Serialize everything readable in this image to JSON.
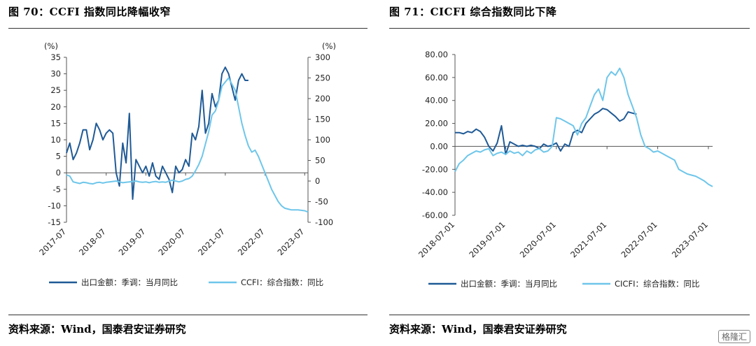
{
  "panels": [
    {
      "title": "图 70：CCFI 指数同比降幅收窄",
      "source": "资料来源：Wind，国泰君安证券研究"
    },
    {
      "title": "图 71：CICFI 综合指数同比下降",
      "source": "资料来源：Wind，国泰君安证券研究"
    }
  ],
  "watermark": "格隆汇",
  "chart_data": [
    {
      "type": "line",
      "title": "",
      "left_unit": "(%)",
      "right_unit": "(%)",
      "x_ticks": [
        "2017-07",
        "2018-07",
        "2019-07",
        "2020-07",
        "2021-07",
        "2022-07",
        "2023-07"
      ],
      "x_range": [
        "2017-07",
        "2023-08"
      ],
      "ylim_left": [
        -15,
        35
      ],
      "yticks_left": [
        -15,
        -10,
        -5,
        0,
        5,
        10,
        15,
        20,
        25,
        30,
        35
      ],
      "ylim_right": [
        -100,
        300
      ],
      "yticks_right": [
        -100,
        -50,
        0,
        50,
        100,
        150,
        200,
        250,
        300
      ],
      "legend_position": "bottom",
      "series": [
        {
          "name": "出口金额：季调：当月同比",
          "axis": "left",
          "color": "#1f5a96",
          "x": [
            "2017-07",
            "2017-08",
            "2017-09",
            "2017-10",
            "2017-11",
            "2017-12",
            "2018-01",
            "2018-02",
            "2018-03",
            "2018-04",
            "2018-05",
            "2018-06",
            "2018-07",
            "2018-08",
            "2018-09",
            "2018-10",
            "2018-11",
            "2018-12",
            "2019-01",
            "2019-02",
            "2019-03",
            "2019-04",
            "2019-05",
            "2019-06",
            "2019-07",
            "2019-08",
            "2019-09",
            "2019-10",
            "2019-11",
            "2019-12",
            "2020-01",
            "2020-02",
            "2020-03",
            "2020-04",
            "2020-05",
            "2020-06",
            "2020-07",
            "2020-08",
            "2020-09",
            "2020-10",
            "2020-11",
            "2020-12",
            "2021-01",
            "2021-02",
            "2021-03",
            "2021-04",
            "2021-05",
            "2021-06",
            "2021-07",
            "2021-08",
            "2021-09",
            "2021-10",
            "2021-11",
            "2021-12",
            "2022-01",
            "2022-02"
          ],
          "y": [
            6,
            9,
            4,
            6,
            9,
            13,
            13,
            7,
            10,
            15,
            13,
            10,
            12,
            13,
            12,
            0,
            -4,
            9,
            3,
            18,
            -8,
            4,
            2,
            0,
            2,
            -1,
            3,
            -1,
            -2,
            2,
            0,
            -2,
            -6,
            2,
            0,
            1,
            4,
            2,
            12,
            10,
            14,
            25,
            12,
            15,
            24,
            20,
            22,
            30,
            32,
            30,
            26,
            22,
            28,
            30,
            28,
            28
          ]
        },
        {
          "name": "CCFI：综合指数：同比",
          "axis": "right",
          "color": "#6ec6ea",
          "x": [
            "2017-07",
            "2017-08",
            "2017-09",
            "2017-10",
            "2017-11",
            "2017-12",
            "2018-01",
            "2018-02",
            "2018-03",
            "2018-04",
            "2018-05",
            "2018-06",
            "2018-07",
            "2018-08",
            "2018-09",
            "2018-10",
            "2018-11",
            "2018-12",
            "2019-01",
            "2019-02",
            "2019-03",
            "2019-04",
            "2019-05",
            "2019-06",
            "2019-07",
            "2019-08",
            "2019-09",
            "2019-10",
            "2019-11",
            "2019-12",
            "2020-01",
            "2020-02",
            "2020-03",
            "2020-04",
            "2020-05",
            "2020-06",
            "2020-07",
            "2020-08",
            "2020-09",
            "2020-10",
            "2020-11",
            "2020-12",
            "2021-01",
            "2021-02",
            "2021-03",
            "2021-04",
            "2021-05",
            "2021-06",
            "2021-07",
            "2021-08",
            "2021-09",
            "2021-10",
            "2021-11",
            "2021-12",
            "2022-01",
            "2022-02",
            "2022-03",
            "2022-04",
            "2022-05",
            "2022-06",
            "2022-07",
            "2022-08",
            "2022-09",
            "2022-10",
            "2022-11",
            "2022-12",
            "2023-01",
            "2023-02",
            "2023-03",
            "2023-04",
            "2023-05",
            "2023-06",
            "2023-07",
            "2023-08"
          ],
          "y": [
            15,
            12,
            -2,
            -4,
            -6,
            -3,
            -4,
            -6,
            -7,
            -4,
            -3,
            -5,
            -3,
            -2,
            -1,
            0,
            -2,
            -4,
            -3,
            -2,
            -1,
            0,
            -2,
            -3,
            -2,
            -4,
            -2,
            -1,
            -3,
            -2,
            -3,
            0,
            2,
            0,
            -2,
            0,
            4,
            6,
            12,
            25,
            40,
            60,
            90,
            120,
            160,
            170,
            195,
            230,
            240,
            250,
            235,
            220,
            180,
            140,
            110,
            85,
            70,
            75,
            60,
            40,
            20,
            0,
            -20,
            -35,
            -50,
            -60,
            -66,
            -68,
            -70,
            -70,
            -70,
            -71,
            -72,
            -75
          ]
        }
      ]
    },
    {
      "type": "line",
      "title": "",
      "x_ticks": [
        "2018-07-01",
        "2019-07-01",
        "2020-07-01",
        "2021-07-01",
        "2022-07-01",
        "2023-07-01"
      ],
      "x_range": [
        "2018-07-01",
        "2023-08-01"
      ],
      "ylim": [
        -60,
        80
      ],
      "yticks": [
        "-60.00",
        "-40.00",
        "-20.00",
        "0.00",
        "20.00",
        "40.00",
        "60.00",
        "80.00"
      ],
      "legend_position": "bottom",
      "series": [
        {
          "name": "出口金额：季调：当月同比",
          "color": "#1f5a96",
          "x": [
            "2018-07",
            "2018-08",
            "2018-09",
            "2018-10",
            "2018-11",
            "2018-12",
            "2019-01",
            "2019-02",
            "2019-03",
            "2019-04",
            "2019-05",
            "2019-06",
            "2019-07",
            "2019-08",
            "2019-09",
            "2019-10",
            "2019-11",
            "2019-12",
            "2020-01",
            "2020-02",
            "2020-03",
            "2020-04",
            "2020-05",
            "2020-06",
            "2020-07",
            "2020-08",
            "2020-09",
            "2020-10",
            "2020-11",
            "2020-12",
            "2021-01",
            "2021-02",
            "2021-03",
            "2021-04",
            "2021-05",
            "2021-06",
            "2021-07",
            "2021-08",
            "2021-09",
            "2021-10",
            "2021-11",
            "2021-12",
            "2022-01",
            "2022-02"
          ],
          "y": [
            12,
            12,
            11,
            13,
            12,
            15,
            13,
            8,
            0,
            -4,
            3,
            18,
            -7,
            4,
            2,
            0,
            1,
            0,
            1,
            0,
            -2,
            2,
            0,
            1,
            3,
            -4,
            2,
            0,
            12,
            14,
            12,
            20,
            24,
            28,
            30,
            33,
            32,
            29,
            26,
            22,
            24,
            30,
            29,
            28
          ]
        },
        {
          "name": "CICFI：综合指数：同比",
          "color": "#6ec6ea",
          "x": [
            "2018-07",
            "2018-08",
            "2018-09",
            "2018-10",
            "2018-11",
            "2018-12",
            "2019-01",
            "2019-02",
            "2019-03",
            "2019-04",
            "2019-05",
            "2019-06",
            "2019-07",
            "2019-08",
            "2019-09",
            "2019-10",
            "2019-11",
            "2019-12",
            "2020-01",
            "2020-02",
            "2020-03",
            "2020-04",
            "2020-05",
            "2020-06",
            "2020-07",
            "2020-08",
            "2020-09",
            "2020-10",
            "2020-11",
            "2020-12",
            "2021-01",
            "2021-02",
            "2021-03",
            "2021-04",
            "2021-05",
            "2021-06",
            "2021-07",
            "2021-08",
            "2021-09",
            "2021-10",
            "2021-11",
            "2021-12",
            "2022-01",
            "2022-02",
            "2022-03",
            "2022-04",
            "2022-05",
            "2022-06",
            "2022-07",
            "2022-08",
            "2022-09",
            "2022-10",
            "2022-11",
            "2022-12",
            "2023-01",
            "2023-02",
            "2023-03",
            "2023-04",
            "2023-05",
            "2023-06",
            "2023-07",
            "2023-08"
          ],
          "y": [
            -22,
            -15,
            -12,
            -8,
            -6,
            -4,
            -5,
            -3,
            -2,
            -8,
            -6,
            -5,
            -7,
            -4,
            -6,
            -5,
            -8,
            -4,
            -6,
            -3,
            -2,
            -5,
            -4,
            0,
            25,
            24,
            22,
            20,
            18,
            10,
            20,
            25,
            35,
            45,
            50,
            40,
            60,
            65,
            62,
            68,
            60,
            45,
            35,
            25,
            10,
            0,
            -2,
            -5,
            -4,
            -6,
            -8,
            -10,
            -12,
            -20,
            -22,
            -24,
            -25,
            -26,
            -28,
            -30,
            -33,
            -35
          ]
        }
      ]
    }
  ]
}
